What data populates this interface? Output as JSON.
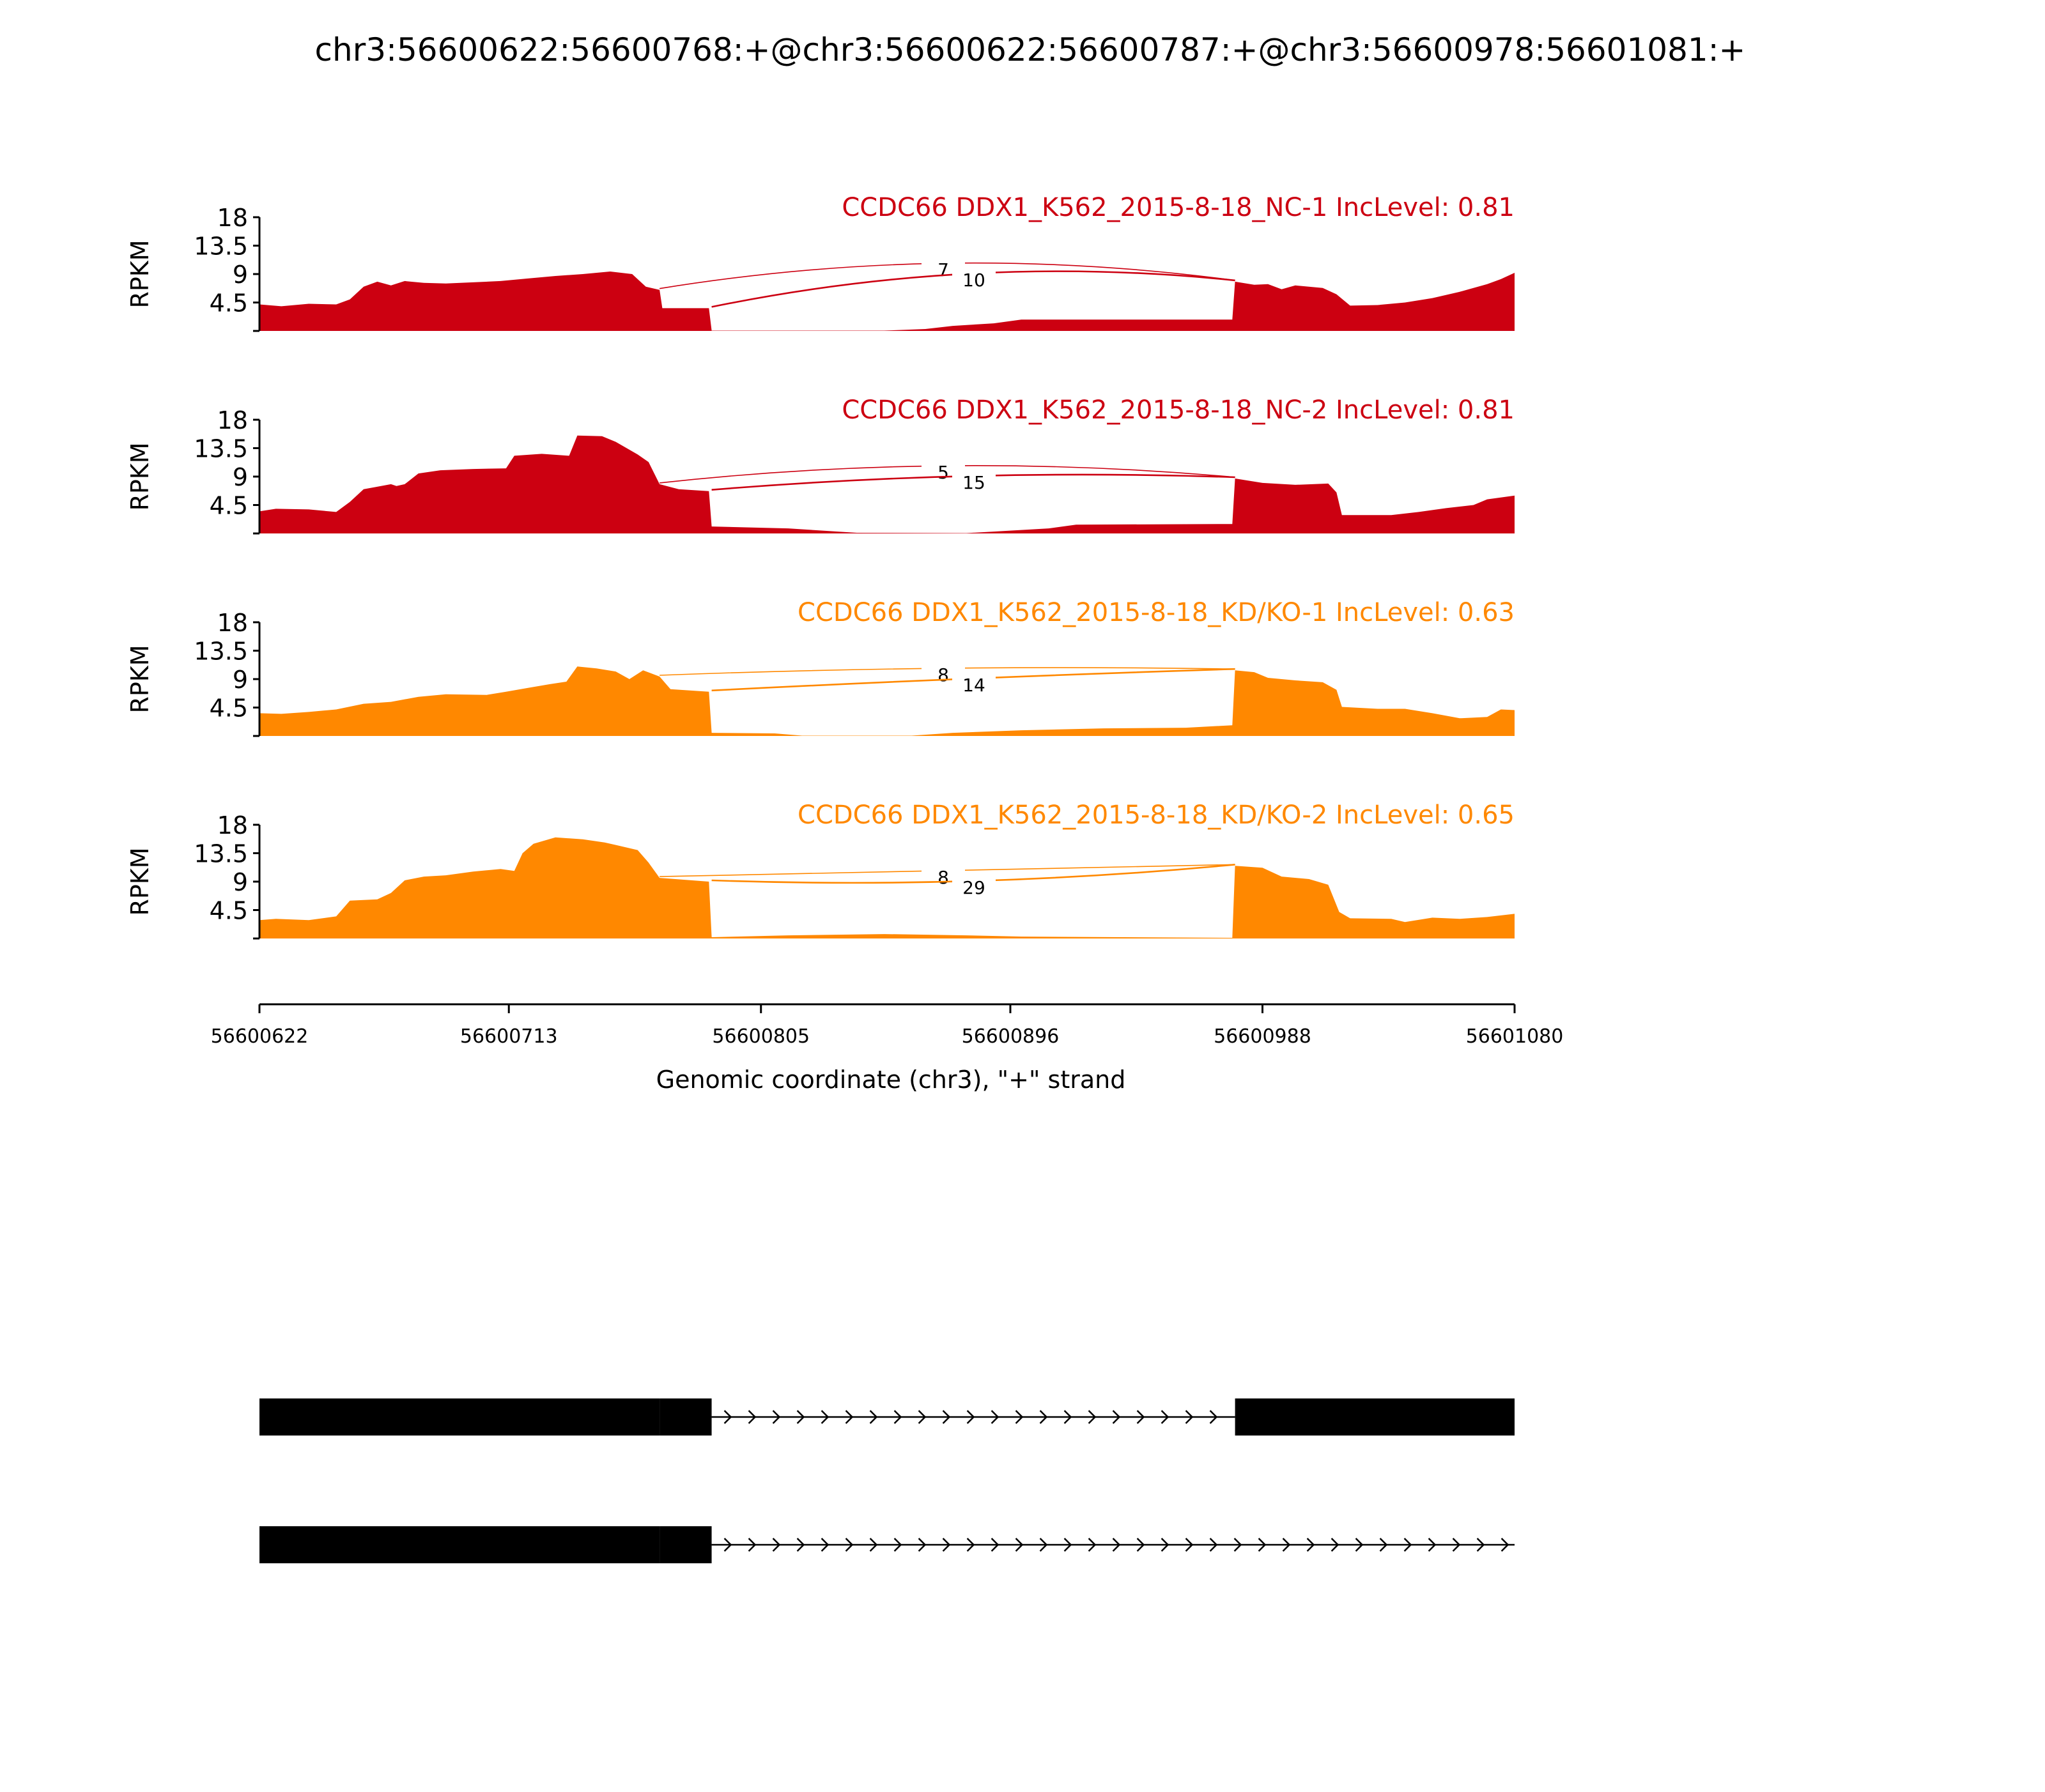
{
  "chart_data": {
    "type": "area",
    "title": "chr3:56600622:56600768:+@chr3:56600622:56600787:+@chr3:56600978:56601081:+",
    "xlabel": "Genomic coordinate (chr3), \"+\" strand",
    "ylabel": "RPKM",
    "xlim": [
      56600622,
      56601080
    ],
    "x_ticks": [
      "56600622",
      "56600713",
      "56600805",
      "56600896",
      "56600988",
      "56601080"
    ],
    "ylim": [
      0,
      18
    ],
    "y_ticks": [
      "4.5",
      "9",
      "13.5",
      "18"
    ],
    "tracks": [
      {
        "name": "CCDC66 DDX1_K562_2015-8-18_NC-1 IncLevel: 0.81",
        "color": "#cc0011",
        "coverage": [
          [
            56600622,
            4.2
          ],
          [
            56600630,
            3.9
          ],
          [
            56600640,
            4.3
          ],
          [
            56600650,
            4.2
          ],
          [
            56600655,
            5
          ],
          [
            56600660,
            7
          ],
          [
            56600665,
            7.8
          ],
          [
            56600670,
            7.2
          ],
          [
            56600675,
            7.9
          ],
          [
            56600682,
            7.6
          ],
          [
            56600690,
            7.5
          ],
          [
            56600700,
            7.7
          ],
          [
            56600710,
            7.9
          ],
          [
            56600720,
            8.3
          ],
          [
            56600730,
            8.7
          ],
          [
            56600740,
            9.0
          ],
          [
            56600745,
            9.2
          ],
          [
            56600750,
            9.4
          ],
          [
            56600758,
            9.0
          ],
          [
            56600763,
            7.0
          ],
          [
            56600768,
            6.5
          ],
          [
            56600769,
            3.6
          ],
          [
            56600786,
            3.6
          ],
          [
            56600787,
            0.05
          ],
          [
            56600850,
            0.05
          ],
          [
            56600865,
            0.3
          ],
          [
            56600875,
            0.8
          ],
          [
            56600890,
            1.2
          ],
          [
            56600900,
            1.8
          ],
          [
            56600977,
            1.8
          ],
          [
            56600978,
            7.8
          ],
          [
            56600985,
            7.3
          ],
          [
            56600990,
            7.4
          ],
          [
            56600995,
            6.6
          ],
          [
            56601000,
            7.2
          ],
          [
            56601010,
            6.8
          ],
          [
            56601015,
            5.8
          ],
          [
            56601020,
            4.0
          ],
          [
            56601030,
            4.1
          ],
          [
            56601040,
            4.5
          ],
          [
            56601050,
            5.2
          ],
          [
            56601060,
            6.2
          ],
          [
            56601070,
            7.4
          ],
          [
            56601075,
            8.2
          ],
          [
            56601080,
            9.2
          ]
        ],
        "junctions": [
          {
            "label": "7",
            "from": 56600768,
            "to": 56600978
          },
          {
            "label": "10",
            "from": 56600787,
            "to": 56600978
          }
        ]
      },
      {
        "name": "CCDC66 DDX1_K562_2015-8-18_NC-2 IncLevel: 0.81",
        "color": "#cc0011",
        "coverage": [
          [
            56600622,
            3.5
          ],
          [
            56600628,
            3.9
          ],
          [
            56600640,
            3.8
          ],
          [
            56600650,
            3.4
          ],
          [
            56600655,
            5
          ],
          [
            56600660,
            7
          ],
          [
            56600670,
            7.8
          ],
          [
            56600672,
            7.5
          ],
          [
            56600675,
            7.8
          ],
          [
            56600680,
            9.5
          ],
          [
            56600688,
            10
          ],
          [
            56600700,
            10.2
          ],
          [
            56600712,
            10.3
          ],
          [
            56600715,
            12.3
          ],
          [
            56600725,
            12.6
          ],
          [
            56600735,
            12.3
          ],
          [
            56600738,
            15.5
          ],
          [
            56600747,
            15.4
          ],
          [
            56600752,
            14.5
          ],
          [
            56600760,
            12.5
          ],
          [
            56600764,
            11.3
          ],
          [
            56600768,
            7.8
          ],
          [
            56600775,
            7.0
          ],
          [
            56600786,
            6.7
          ],
          [
            56600787,
            1.1
          ],
          [
            56600815,
            0.8
          ],
          [
            56600840,
            0.1
          ],
          [
            56600880,
            0.05
          ],
          [
            56600910,
            0.8
          ],
          [
            56600920,
            1.4
          ],
          [
            56600977,
            1.5
          ],
          [
            56600978,
            8.7
          ],
          [
            56600988,
            8.0
          ],
          [
            56601000,
            7.7
          ],
          [
            56601012,
            7.9
          ],
          [
            56601015,
            6.5
          ],
          [
            56601017,
            2.9
          ],
          [
            56601035,
            2.9
          ],
          [
            56601045,
            3.4
          ],
          [
            56601055,
            4.0
          ],
          [
            56601065,
            4.5
          ],
          [
            56601070,
            5.4
          ],
          [
            56601080,
            6.0
          ]
        ],
        "junctions": [
          {
            "label": "5",
            "from": 56600768,
            "to": 56600978
          },
          {
            "label": "15",
            "from": 56600787,
            "to": 56600978
          }
        ]
      },
      {
        "name": "CCDC66 DDX1_K562_2015-8-18_KD/KO-1 IncLevel: 0.63",
        "color": "#ff8800",
        "coverage": [
          [
            56600622,
            3.6
          ],
          [
            56600630,
            3.5
          ],
          [
            56600640,
            3.8
          ],
          [
            56600650,
            4.2
          ],
          [
            56600660,
            5.1
          ],
          [
            56600670,
            5.4
          ],
          [
            56600680,
            6.2
          ],
          [
            56600690,
            6.6
          ],
          [
            56600705,
            6.5
          ],
          [
            56600712,
            7.0
          ],
          [
            56600720,
            7.6
          ],
          [
            56600728,
            8.2
          ],
          [
            56600734,
            8.6
          ],
          [
            56600738,
            11.0
          ],
          [
            56600745,
            10.7
          ],
          [
            56600752,
            10.2
          ],
          [
            56600757,
            9.0
          ],
          [
            56600762,
            10.4
          ],
          [
            56600768,
            9.4
          ],
          [
            56600772,
            7.4
          ],
          [
            56600786,
            7.0
          ],
          [
            56600787,
            0.5
          ],
          [
            56600810,
            0.4
          ],
          [
            56600820,
            0.05
          ],
          [
            56600860,
            0.05
          ],
          [
            56600875,
            0.5
          ],
          [
            56600900,
            0.9
          ],
          [
            56600930,
            1.2
          ],
          [
            56600960,
            1.3
          ],
          [
            56600977,
            1.7
          ],
          [
            56600978,
            10.4
          ],
          [
            56600985,
            10.1
          ],
          [
            56600990,
            9.2
          ],
          [
            56601000,
            8.8
          ],
          [
            56601010,
            8.5
          ],
          [
            56601015,
            7.3
          ],
          [
            56601017,
            4.6
          ],
          [
            56601030,
            4.3
          ],
          [
            56601040,
            4.3
          ],
          [
            56601050,
            3.6
          ],
          [
            56601060,
            2.8
          ],
          [
            56601070,
            3.0
          ],
          [
            56601075,
            4.2
          ],
          [
            56601080,
            4.1
          ]
        ],
        "junctions": [
          {
            "label": "8",
            "from": 56600768,
            "to": 56600978
          },
          {
            "label": "14",
            "from": 56600787,
            "to": 56600978
          }
        ]
      },
      {
        "name": "CCDC66 DDX1_K562_2015-8-18_KD/KO-2 IncLevel: 0.65",
        "color": "#ff8800",
        "coverage": [
          [
            56600622,
            2.9
          ],
          [
            56600628,
            3.1
          ],
          [
            56600640,
            2.9
          ],
          [
            56600650,
            3.5
          ],
          [
            56600655,
            6.0
          ],
          [
            56600665,
            6.2
          ],
          [
            56600670,
            7.2
          ],
          [
            56600675,
            9.2
          ],
          [
            56600682,
            9.8
          ],
          [
            56600690,
            10
          ],
          [
            56600700,
            10.6
          ],
          [
            56600710,
            11.0
          ],
          [
            56600715,
            10.7
          ],
          [
            56600718,
            13.5
          ],
          [
            56600722,
            15.0
          ],
          [
            56600730,
            16.0
          ],
          [
            56600740,
            15.7
          ],
          [
            56600748,
            15.2
          ],
          [
            56600752,
            14.8
          ],
          [
            56600760,
            14.0
          ],
          [
            56600764,
            12.0
          ],
          [
            56600768,
            9.6
          ],
          [
            56600786,
            9.0
          ],
          [
            56600787,
            0.2
          ],
          [
            56600815,
            0.5
          ],
          [
            56600850,
            0.7
          ],
          [
            56600880,
            0.5
          ],
          [
            56600900,
            0.3
          ],
          [
            56600977,
            0.1
          ],
          [
            56600978,
            11.5
          ],
          [
            56600988,
            11.2
          ],
          [
            56600995,
            9.8
          ],
          [
            56601005,
            9.4
          ],
          [
            56601012,
            8.5
          ],
          [
            56601016,
            4.2
          ],
          [
            56601020,
            3.2
          ],
          [
            56601035,
            3.1
          ],
          [
            56601040,
            2.6
          ],
          [
            56601050,
            3.3
          ],
          [
            56601060,
            3.1
          ],
          [
            56601070,
            3.4
          ],
          [
            56601080,
            3.9
          ]
        ],
        "junctions": [
          {
            "label": "8",
            "from": 56600768,
            "to": 56600978
          },
          {
            "label": "29",
            "from": 56600787,
            "to": 56600978
          }
        ]
      }
    ],
    "isoforms": [
      {
        "exons": [
          [
            56600622,
            56600768
          ],
          [
            56600768,
            56600787
          ],
          [
            56600978,
            56601080
          ]
        ],
        "intron": [
          56600787,
          56600978
        ]
      },
      {
        "exons": [
          [
            56600622,
            56600768
          ],
          [
            56600768,
            56600787
          ]
        ],
        "intron": [
          56600787,
          56601080
        ]
      }
    ]
  }
}
